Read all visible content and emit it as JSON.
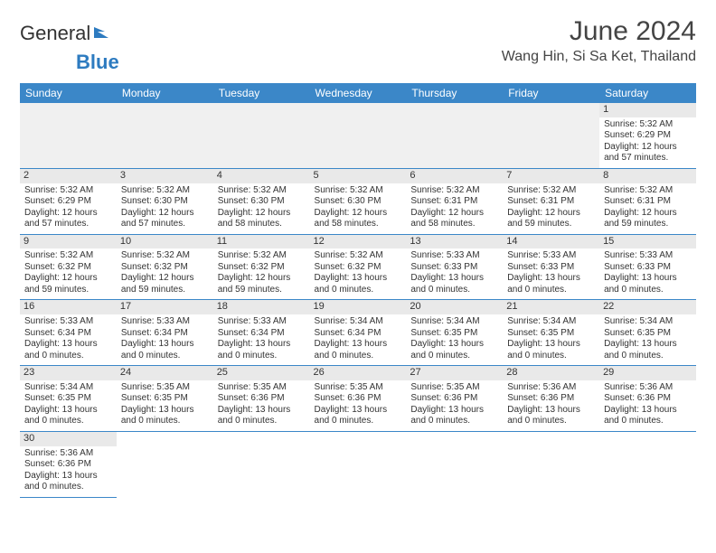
{
  "logo": {
    "general": "General",
    "blue": "Blue"
  },
  "title": "June 2024",
  "location": "Wang Hin, Si Sa Ket, Thailand",
  "colors": {
    "header_bg": "#3b87c8",
    "header_text": "#ffffff",
    "daynum_bg": "#e9e9e9",
    "border": "#3b87c8",
    "text": "#333333",
    "logo_blue": "#2d7bc0"
  },
  "weekdays": [
    "Sunday",
    "Monday",
    "Tuesday",
    "Wednesday",
    "Thursday",
    "Friday",
    "Saturday"
  ],
  "weeks": [
    [
      null,
      null,
      null,
      null,
      null,
      null,
      {
        "n": "1",
        "sr": "Sunrise: 5:32 AM",
        "ss": "Sunset: 6:29 PM",
        "d1": "Daylight: 12 hours",
        "d2": "and 57 minutes."
      }
    ],
    [
      {
        "n": "2",
        "sr": "Sunrise: 5:32 AM",
        "ss": "Sunset: 6:29 PM",
        "d1": "Daylight: 12 hours",
        "d2": "and 57 minutes."
      },
      {
        "n": "3",
        "sr": "Sunrise: 5:32 AM",
        "ss": "Sunset: 6:30 PM",
        "d1": "Daylight: 12 hours",
        "d2": "and 57 minutes."
      },
      {
        "n": "4",
        "sr": "Sunrise: 5:32 AM",
        "ss": "Sunset: 6:30 PM",
        "d1": "Daylight: 12 hours",
        "d2": "and 58 minutes."
      },
      {
        "n": "5",
        "sr": "Sunrise: 5:32 AM",
        "ss": "Sunset: 6:30 PM",
        "d1": "Daylight: 12 hours",
        "d2": "and 58 minutes."
      },
      {
        "n": "6",
        "sr": "Sunrise: 5:32 AM",
        "ss": "Sunset: 6:31 PM",
        "d1": "Daylight: 12 hours",
        "d2": "and 58 minutes."
      },
      {
        "n": "7",
        "sr": "Sunrise: 5:32 AM",
        "ss": "Sunset: 6:31 PM",
        "d1": "Daylight: 12 hours",
        "d2": "and 59 minutes."
      },
      {
        "n": "8",
        "sr": "Sunrise: 5:32 AM",
        "ss": "Sunset: 6:31 PM",
        "d1": "Daylight: 12 hours",
        "d2": "and 59 minutes."
      }
    ],
    [
      {
        "n": "9",
        "sr": "Sunrise: 5:32 AM",
        "ss": "Sunset: 6:32 PM",
        "d1": "Daylight: 12 hours",
        "d2": "and 59 minutes."
      },
      {
        "n": "10",
        "sr": "Sunrise: 5:32 AM",
        "ss": "Sunset: 6:32 PM",
        "d1": "Daylight: 12 hours",
        "d2": "and 59 minutes."
      },
      {
        "n": "11",
        "sr": "Sunrise: 5:32 AM",
        "ss": "Sunset: 6:32 PM",
        "d1": "Daylight: 12 hours",
        "d2": "and 59 minutes."
      },
      {
        "n": "12",
        "sr": "Sunrise: 5:32 AM",
        "ss": "Sunset: 6:32 PM",
        "d1": "Daylight: 13 hours",
        "d2": "and 0 minutes."
      },
      {
        "n": "13",
        "sr": "Sunrise: 5:33 AM",
        "ss": "Sunset: 6:33 PM",
        "d1": "Daylight: 13 hours",
        "d2": "and 0 minutes."
      },
      {
        "n": "14",
        "sr": "Sunrise: 5:33 AM",
        "ss": "Sunset: 6:33 PM",
        "d1": "Daylight: 13 hours",
        "d2": "and 0 minutes."
      },
      {
        "n": "15",
        "sr": "Sunrise: 5:33 AM",
        "ss": "Sunset: 6:33 PM",
        "d1": "Daylight: 13 hours",
        "d2": "and 0 minutes."
      }
    ],
    [
      {
        "n": "16",
        "sr": "Sunrise: 5:33 AM",
        "ss": "Sunset: 6:34 PM",
        "d1": "Daylight: 13 hours",
        "d2": "and 0 minutes."
      },
      {
        "n": "17",
        "sr": "Sunrise: 5:33 AM",
        "ss": "Sunset: 6:34 PM",
        "d1": "Daylight: 13 hours",
        "d2": "and 0 minutes."
      },
      {
        "n": "18",
        "sr": "Sunrise: 5:33 AM",
        "ss": "Sunset: 6:34 PM",
        "d1": "Daylight: 13 hours",
        "d2": "and 0 minutes."
      },
      {
        "n": "19",
        "sr": "Sunrise: 5:34 AM",
        "ss": "Sunset: 6:34 PM",
        "d1": "Daylight: 13 hours",
        "d2": "and 0 minutes."
      },
      {
        "n": "20",
        "sr": "Sunrise: 5:34 AM",
        "ss": "Sunset: 6:35 PM",
        "d1": "Daylight: 13 hours",
        "d2": "and 0 minutes."
      },
      {
        "n": "21",
        "sr": "Sunrise: 5:34 AM",
        "ss": "Sunset: 6:35 PM",
        "d1": "Daylight: 13 hours",
        "d2": "and 0 minutes."
      },
      {
        "n": "22",
        "sr": "Sunrise: 5:34 AM",
        "ss": "Sunset: 6:35 PM",
        "d1": "Daylight: 13 hours",
        "d2": "and 0 minutes."
      }
    ],
    [
      {
        "n": "23",
        "sr": "Sunrise: 5:34 AM",
        "ss": "Sunset: 6:35 PM",
        "d1": "Daylight: 13 hours",
        "d2": "and 0 minutes."
      },
      {
        "n": "24",
        "sr": "Sunrise: 5:35 AM",
        "ss": "Sunset: 6:35 PM",
        "d1": "Daylight: 13 hours",
        "d2": "and 0 minutes."
      },
      {
        "n": "25",
        "sr": "Sunrise: 5:35 AM",
        "ss": "Sunset: 6:36 PM",
        "d1": "Daylight: 13 hours",
        "d2": "and 0 minutes."
      },
      {
        "n": "26",
        "sr": "Sunrise: 5:35 AM",
        "ss": "Sunset: 6:36 PM",
        "d1": "Daylight: 13 hours",
        "d2": "and 0 minutes."
      },
      {
        "n": "27",
        "sr": "Sunrise: 5:35 AM",
        "ss": "Sunset: 6:36 PM",
        "d1": "Daylight: 13 hours",
        "d2": "and 0 minutes."
      },
      {
        "n": "28",
        "sr": "Sunrise: 5:36 AM",
        "ss": "Sunset: 6:36 PM",
        "d1": "Daylight: 13 hours",
        "d2": "and 0 minutes."
      },
      {
        "n": "29",
        "sr": "Sunrise: 5:36 AM",
        "ss": "Sunset: 6:36 PM",
        "d1": "Daylight: 13 hours",
        "d2": "and 0 minutes."
      }
    ],
    [
      {
        "n": "30",
        "sr": "Sunrise: 5:36 AM",
        "ss": "Sunset: 6:36 PM",
        "d1": "Daylight: 13 hours",
        "d2": "and 0 minutes."
      },
      null,
      null,
      null,
      null,
      null,
      null
    ]
  ]
}
